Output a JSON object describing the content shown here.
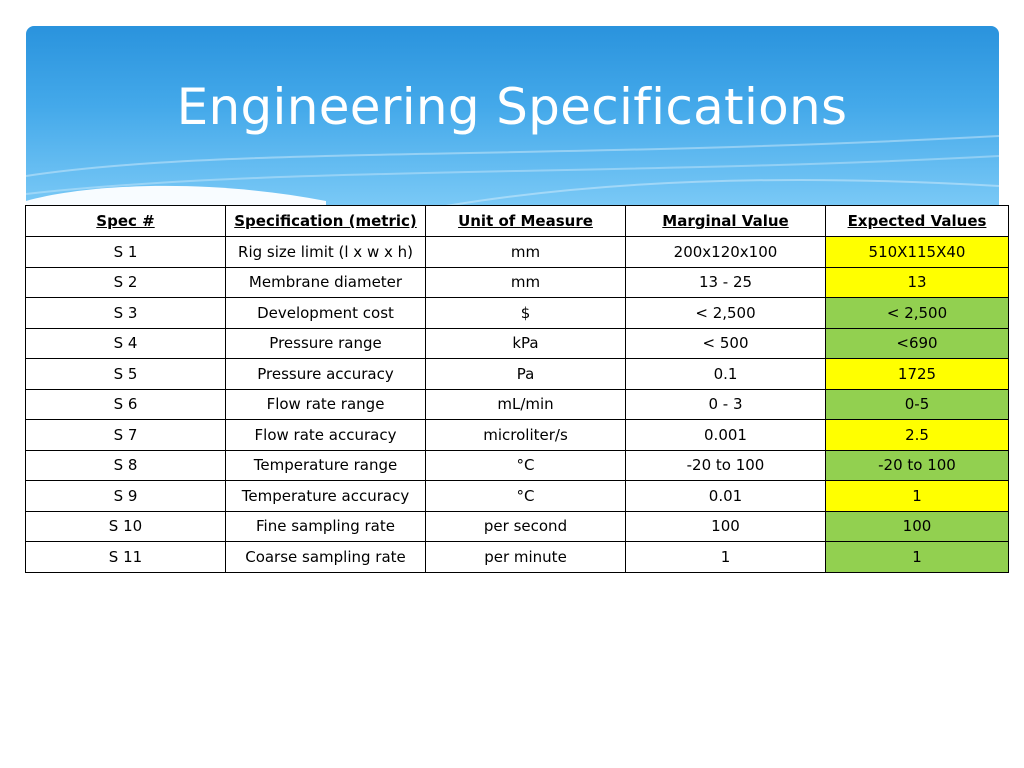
{
  "slide": {
    "title": "Engineering Specifications"
  },
  "colors": {
    "banner_top": "#2a93dd",
    "banner_bottom": "#7ac9f6",
    "highlight_yellow": "#ffff00",
    "highlight_green": "#92d050"
  },
  "table": {
    "headers": [
      "Spec #",
      "Specification (metric)",
      "Unit of Measure",
      "Marginal Value",
      "Expected Values"
    ],
    "rows": [
      {
        "spec": "S 1",
        "specification": "Rig size limit (l x w x h)",
        "unit": "mm",
        "marginal": "200x120x100",
        "expected": "510X115X40",
        "highlight": "yellow"
      },
      {
        "spec": "S 2",
        "specification": "Membrane diameter",
        "unit": "mm",
        "marginal": "13 - 25",
        "expected": "13",
        "highlight": "yellow"
      },
      {
        "spec": "S 3",
        "specification": "Development cost",
        "unit": "$",
        "marginal": "< 2,500",
        "expected": "< 2,500",
        "highlight": "green"
      },
      {
        "spec": "S 4",
        "specification": "Pressure range",
        "unit": "kPa",
        "marginal": "< 500",
        "expected": "<690",
        "highlight": "green"
      },
      {
        "spec": "S 5",
        "specification": "Pressure accuracy",
        "unit": "Pa",
        "marginal": "0.1",
        "expected": "1725",
        "highlight": "yellow"
      },
      {
        "spec": "S 6",
        "specification": "Flow rate range",
        "unit": "mL/min",
        "marginal": "0 - 3",
        "expected": "0-5",
        "highlight": "green"
      },
      {
        "spec": "S 7",
        "specification": "Flow rate accuracy",
        "unit": "microliter/s",
        "marginal": "0.001",
        "expected": "2.5",
        "highlight": "yellow"
      },
      {
        "spec": "S 8",
        "specification": "Temperature range",
        "unit": "°C",
        "marginal": "-20 to 100",
        "expected": "-20 to 100",
        "highlight": "green"
      },
      {
        "spec": "S 9",
        "specification": "Temperature accuracy",
        "unit": "°C",
        "marginal": "0.01",
        "expected": "1",
        "highlight": "yellow"
      },
      {
        "spec": "S 10",
        "specification": "Fine sampling rate",
        "unit": "per second",
        "marginal": "100",
        "expected": "100",
        "highlight": "green"
      },
      {
        "spec": "S 11",
        "specification": "Coarse sampling rate",
        "unit": "per minute",
        "marginal": "1",
        "expected": "1",
        "highlight": "green"
      }
    ]
  }
}
